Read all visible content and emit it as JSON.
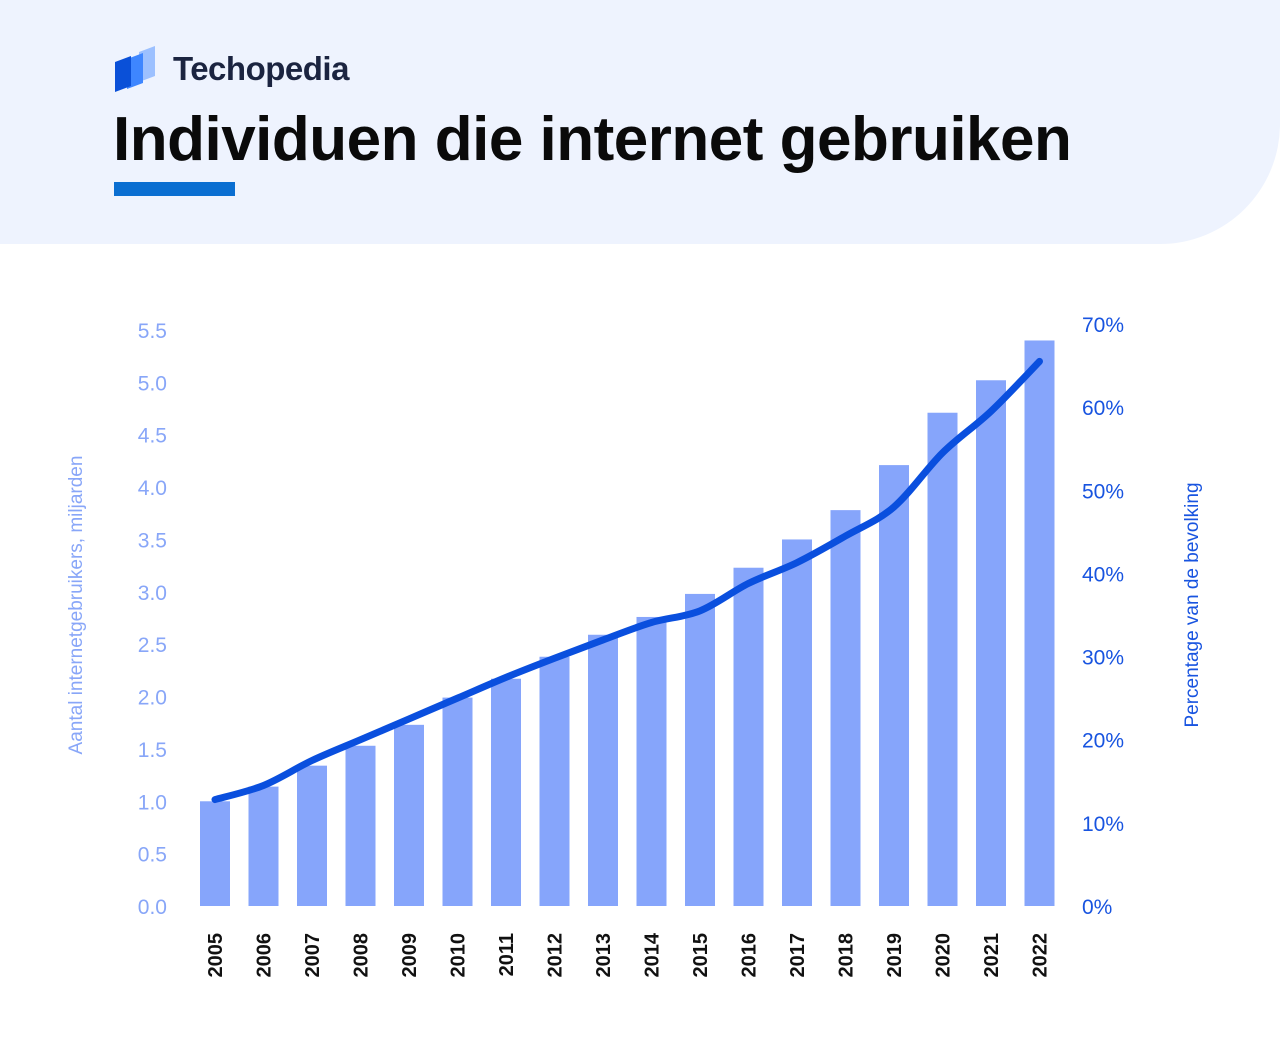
{
  "brand": {
    "name": "Techopedia",
    "logo_icon": "stacked-pages-logo-icon"
  },
  "page": {
    "title": "Individuen die internet gebruiken"
  },
  "colors": {
    "header_bg": "#eef3fe",
    "accent": "#0a6ed1",
    "bar": "#86a5fb",
    "line": "#0a4fde",
    "left_axis": "#88a6f8",
    "right_axis": "#1854e0"
  },
  "chart_data": {
    "type": "bar",
    "categories": [
      "2005",
      "2006",
      "2007",
      "2008",
      "2009",
      "2010",
      "2011",
      "2012",
      "2013",
      "2014",
      "2015",
      "2016",
      "2017",
      "2018",
      "2019",
      "2020",
      "2021",
      "2022"
    ],
    "series": [
      {
        "type": "bar",
        "axis": "left",
        "values": [
          1.0,
          1.14,
          1.34,
          1.53,
          1.73,
          1.99,
          2.17,
          2.38,
          2.59,
          2.76,
          2.98,
          3.23,
          3.5,
          3.78,
          4.21,
          4.71,
          5.02,
          5.4
        ]
      },
      {
        "type": "line",
        "axis": "right",
        "values": [
          12.8,
          14.5,
          17.5,
          20.0,
          22.5,
          25.0,
          27.5,
          29.8,
          32.0,
          34.1,
          35.5,
          38.8,
          41.3,
          44.5,
          48.0,
          54.5,
          59.5,
          65.5
        ]
      }
    ],
    "ylabel": "Aantal internetgebruikers, miljarden",
    "ylabel_right": "Percentage van de bevolking",
    "ylim": [
      0,
      5.5
    ],
    "ylim_right": [
      0,
      70
    ],
    "yticks": [
      "0.0",
      "0.5",
      "1.0",
      "1.5",
      "2.0",
      "2.5",
      "3.0",
      "3.5",
      "4.0",
      "4.5",
      "5.0",
      "5.5"
    ],
    "yticks_right": [
      "0%",
      "10%",
      "20%",
      "30%",
      "40%",
      "50%",
      "60%",
      "70%"
    ],
    "grid": false,
    "legend": "none"
  }
}
